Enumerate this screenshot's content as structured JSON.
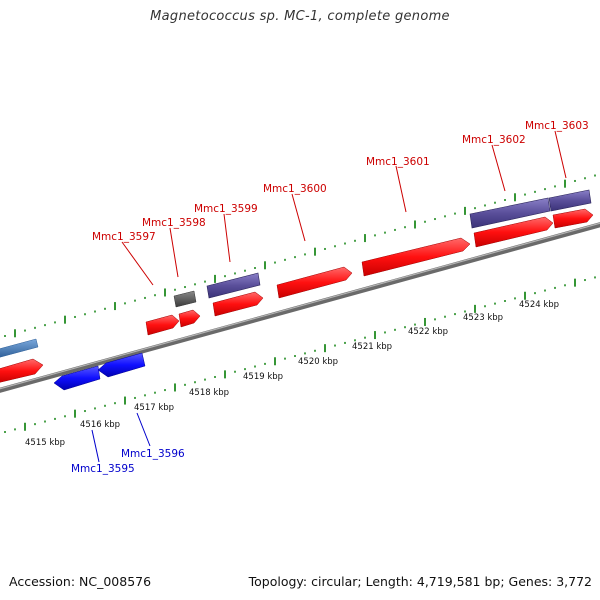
{
  "title": "Magnetococcus sp. MC-1, complete genome",
  "footer": {
    "accession": "Accession: NC_008576",
    "summary": "Topology: circular; Length: 4,719,581 bp; Genes: 3,772"
  },
  "scale_labels": [
    "4515 kbp",
    "4516 kbp",
    "4517 kbp",
    "4518 kbp",
    "4519 kbp",
    "4520 kbp",
    "4521 kbp",
    "4522 kbp",
    "4523 kbp",
    "4524 kbp"
  ],
  "gene_labels": {
    "forward": [
      "Mmc1_3597",
      "Mmc1_3598",
      "Mmc1_3599",
      "Mmc1_3600",
      "Mmc1_3601",
      "Mmc1_3602",
      "Mmc1_3603"
    ],
    "reverse": [
      "Mmc1_3595",
      "Mmc1_3596"
    ]
  },
  "colors": {
    "forward_cds": "#ff1a1a",
    "reverse_cds": "#1a1aff",
    "feature_purple": "#5a4f9a",
    "feature_gray": "#555555",
    "feature_steelblue": "#4a7fb8",
    "backbone": "#888888",
    "tick": "#1f8a1f",
    "forward_label": "#cc0000",
    "reverse_label": "#0000cc"
  }
}
